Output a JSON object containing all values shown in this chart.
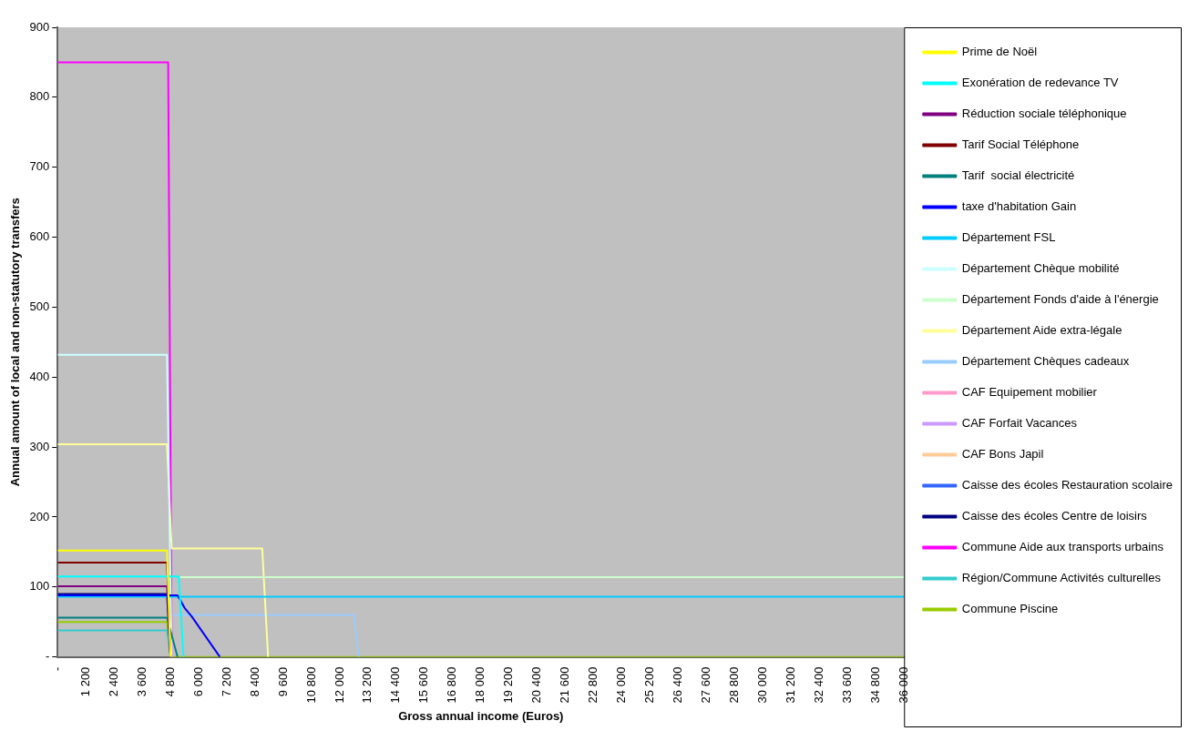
{
  "chart_data": {
    "type": "line",
    "xlabel": "Gross annual income (Euros)",
    "ylabel": "Annual amount of local and non-statutory transfers",
    "xlim": [
      0,
      36000
    ],
    "ylim": [
      0,
      900
    ],
    "xticks": [
      {
        "value": 0,
        "label": "-"
      },
      {
        "value": 1200,
        "label": "1 200"
      },
      {
        "value": 2400,
        "label": "2 400"
      },
      {
        "value": 3600,
        "label": "3 600"
      },
      {
        "value": 4800,
        "label": "4 800"
      },
      {
        "value": 6000,
        "label": "6 000"
      },
      {
        "value": 7200,
        "label": "7 200"
      },
      {
        "value": 8400,
        "label": "8 400"
      },
      {
        "value": 9600,
        "label": "9 600"
      },
      {
        "value": 10800,
        "label": "10 800"
      },
      {
        "value": 12000,
        "label": "12 000"
      },
      {
        "value": 13200,
        "label": "13 200"
      },
      {
        "value": 14400,
        "label": "14 400"
      },
      {
        "value": 15600,
        "label": "15 600"
      },
      {
        "value": 16800,
        "label": "16 800"
      },
      {
        "value": 18000,
        "label": "18 000"
      },
      {
        "value": 19200,
        "label": "19 200"
      },
      {
        "value": 20400,
        "label": "20 400"
      },
      {
        "value": 21600,
        "label": "21 600"
      },
      {
        "value": 22800,
        "label": "22 800"
      },
      {
        "value": 24000,
        "label": "24 000"
      },
      {
        "value": 25200,
        "label": "25 200"
      },
      {
        "value": 26400,
        "label": "26 400"
      },
      {
        "value": 27600,
        "label": "27 600"
      },
      {
        "value": 28800,
        "label": "28 800"
      },
      {
        "value": 30000,
        "label": "30 000"
      },
      {
        "value": 31200,
        "label": "31 200"
      },
      {
        "value": 32400,
        "label": "32 400"
      },
      {
        "value": 33600,
        "label": "33 600"
      },
      {
        "value": 34800,
        "label": "34 800"
      },
      {
        "value": 36000,
        "label": "36 000"
      }
    ],
    "yticks": [
      {
        "value": 0,
        "label": "-"
      },
      100,
      200,
      300,
      400,
      500,
      600,
      700,
      800,
      900
    ],
    "grid": false,
    "legend": "right",
    "marker": "none",
    "line_style": "solid",
    "series": [
      {
        "name": "Prime de Noël",
        "color": "#ffff00",
        "x": [
          0,
          4650,
          4800
        ],
        "values": [
          152,
          152,
          0
        ]
      },
      {
        "name": "Exonération de redevance TV",
        "color": "#00ffff",
        "x": [
          0,
          5150,
          5350
        ],
        "values": [
          115,
          115,
          0
        ]
      },
      {
        "name": "Réduction sociale téléphonique",
        "color": "#800080",
        "x": [
          0,
          4650,
          4800
        ],
        "values": [
          101,
          101,
          0
        ]
      },
      {
        "name": "Tarif Social Téléphone",
        "color": "#800000",
        "x": [
          0,
          4650,
          4800
        ],
        "values": [
          135,
          135,
          0
        ]
      },
      {
        "name": "Tarif  social électricité",
        "color": "#008080",
        "x": [
          0,
          4650,
          5100
        ],
        "values": [
          56,
          56,
          0
        ]
      },
      {
        "name": "taxe d'habitation Gain",
        "color": "#0000ff",
        "x": [
          0,
          5100,
          5400,
          5700,
          6900
        ],
        "values": [
          88,
          88,
          70,
          58,
          0
        ]
      },
      {
        "name": "Département FSL",
        "color": "#00ccff",
        "x": [
          0,
          36000
        ],
        "values": [
          86,
          86
        ]
      },
      {
        "name": "Département Chèque mobilité",
        "color": "#ccffff",
        "x": [
          0,
          4650,
          4850
        ],
        "values": [
          432,
          432,
          0
        ]
      },
      {
        "name": "Département Fonds d'aide à l'énergie",
        "color": "#ccffcc",
        "x": [
          5200,
          36000
        ],
        "values": [
          114,
          114
        ]
      },
      {
        "name": "Département Aide extra-légale",
        "color": "#ffff99",
        "x": [
          0,
          4650,
          4850,
          8700,
          8950
        ],
        "values": [
          304,
          304,
          155,
          155,
          0
        ]
      },
      {
        "name": "Département Chèques cadeaux",
        "color": "#99ccff",
        "x": [
          4900,
          12600,
          12800
        ],
        "values": [
          60,
          60,
          0
        ]
      },
      {
        "name": "CAF Equipement mobilier",
        "color": "#ff99cc"
      },
      {
        "name": "CAF Forfait Vacances",
        "color": "#cc99ff"
      },
      {
        "name": "CAF Bons Japil",
        "color": "#ffcc99"
      },
      {
        "name": "Caisse des écoles Restauration scolaire",
        "color": "#3366ff"
      },
      {
        "name": "Caisse des écoles Centre de loisirs",
        "color": "#000080",
        "x": [
          0,
          4650,
          4800
        ],
        "values": [
          90,
          90,
          0
        ]
      },
      {
        "name": "Commune Aide aux transports urbains",
        "color": "#ff00ff",
        "x": [
          0,
          4700,
          4850
        ],
        "values": [
          850,
          850,
          0
        ]
      },
      {
        "name": "Région/Commune Activités culturelles",
        "color": "#33cccc",
        "x": [
          0,
          4650,
          4800
        ],
        "values": [
          38,
          38,
          0
        ]
      },
      {
        "name": "Commune Piscine",
        "color": "#99cc00",
        "x": [
          0,
          4650,
          4800,
          36000
        ],
        "values": [
          50,
          50,
          0,
          0
        ]
      }
    ]
  }
}
